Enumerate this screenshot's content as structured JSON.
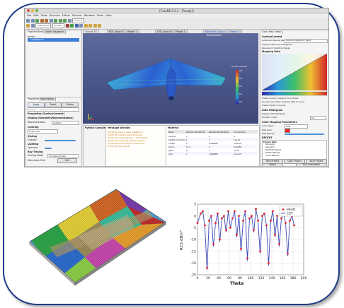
{
  "app": {
    "window_title": "[ColoNE 5.9.1 - [Ready]]",
    "menus": [
      "File",
      "Edit",
      "View",
      "Sources",
      "Filters",
      "Macros",
      "Window",
      "Tools",
      "Help"
    ],
    "toolbar": {
      "reset_label": "Reset",
      "time_label": "Time: 0",
      "render_mode": "Surface",
      "colour_by": "Solid Color"
    },
    "left": {
      "tabs": [
        "Pipeline Browser",
        "Object Inspector"
      ],
      "tree_root": "builtin:",
      "tree_item": "CasMesh.in",
      "props_tabs": [
        "Properties",
        "Information"
      ],
      "apply": "Apply",
      "reset": "Reset",
      "delete": "Delete",
      "search_placeholder": "Search ... (use Esc to clear text)",
      "sections": {
        "props": "Properties (SurfaceCurrent)",
        "display": "Display (GeometryRepresentation)",
        "representation": "Representation",
        "repr_value": "Surface",
        "coloring": "Coloring",
        "color_field": "Solid Color",
        "styling": "Styling",
        "opacity": "Opacity",
        "lighting": "Lighting",
        "specular": "Specular",
        "ray_tracing": "Ray Tracing",
        "scaling_mode": "Scaling Mode",
        "scaling_value": "All Approximate",
        "data_axes": "Data Axes Grid",
        "edit": "Edit"
      }
    },
    "center": {
      "tabs": [
        "Layout #1",
        "RCS Layout 1 - Viewer 1",
        "CFD Layout 1 - Viewer 1",
        "NearField Layout 1 - Viewer 1"
      ],
      "render_view": "RenderView1",
      "colorbar_title": "Surface Current",
      "colorbar_ticks": [
        "0.8",
        "0.6",
        "0.4",
        "0.2",
        "0.0"
      ],
      "output_title": "Python Console",
      "message_title": "Message Window",
      "messages": [
        "[00:00:00] loading mesh 'CasMesh.in'",
        "[00:00:01] building solver structures",
        "[00:00:02] computing RCS ... 'OK' finished",
        "[00:00:03] computing surface currents",
        "[00:00:04] writing output 'currents.vtu'",
        "[00:00:05] 'OK' finished"
      ],
      "material_title": "Material",
      "material_headers": [
        "Name",
        "Relative Permittivity",
        "Relative Permeability",
        "Conductivity"
      ],
      "materials": [
        [
          "vacuum",
          "1",
          "1",
          "0"
        ],
        [
          "perfect conductor",
          "1",
          "1",
          "1e+10"
        ],
        [
          "copper",
          "1",
          "0.999991",
          "5.8e+07"
        ],
        [
          "silicon",
          "11.9",
          "1",
          "0.00156"
        ],
        [
          "glass",
          "6",
          "1",
          "1e-12"
        ],
        [
          "gold",
          "1",
          "0.999966",
          "4.1e+07"
        ]
      ]
    },
    "right": {
      "title": "Color Map Editor",
      "array_label": "SurfaceCurrent",
      "mapping_mode_label": "Automatic Rescale Range Mode",
      "mapping_mode_value": "Grow and update on 'Apply'",
      "interpret_label": "Interpret Values As Categories",
      "rescale_label": "Rescale On Visibility Change",
      "mapping_data": "Mapping Data",
      "enable_opacity": "Enable opacity mapping for surfaces",
      "use_log": "Use log scale when mapping data to colors",
      "enable_freeform": "Enable freeform opacity",
      "data_histogram": "Data Histogram",
      "display_hist": "Display Data Histogram",
      "number_of_bins": "Number of bins",
      "bins_value": "10",
      "color_mapping": "Color Mapping Parameters",
      "color_space": "Color Space",
      "color_space_value": "RGB",
      "nan_color": "NaN Color",
      "nan_opacity": "NaN Opacity",
      "history": "RECENT",
      "project_header": "Project Path",
      "recent_items": [
        "Simulation",
        "Geometry",
        "NearField Results",
        "FarField Results",
        "CurrentResults"
      ],
      "new_project": "New Project",
      "open_project": "Open Project",
      "save_project": "Save Project",
      "about": "About",
      "run_calc": "Run Calculation"
    }
  },
  "colors": {
    "accent": "#1f3c88",
    "pec_marker": "#e8202a",
    "cst_line": "#3a46b8",
    "viewport_top": "#5f6a9c"
  },
  "chart_data": {
    "type": "line",
    "xlabel": "Theta",
    "ylabel": "RCS dBm²",
    "xlim": [
      0,
      200
    ],
    "ylim": [
      -25,
      5
    ],
    "xticks": [
      0,
      20,
      40,
      60,
      80,
      100,
      120,
      140,
      160,
      180,
      200
    ],
    "yticks": [
      5,
      0,
      -5,
      -10,
      -15,
      -20,
      -25
    ],
    "grid": true,
    "legend_position": "top-right",
    "series": [
      {
        "name": "PEHO",
        "marker": "circle",
        "color": "#e8202a",
        "x": [
          0,
          6,
          10,
          14,
          18,
          22,
          26,
          30,
          34,
          38,
          42,
          46,
          50,
          54,
          58,
          62,
          66,
          70,
          74,
          78,
          82,
          86,
          90,
          94,
          98,
          102,
          106,
          110,
          114,
          118,
          122,
          126,
          130,
          134,
          138,
          142,
          146,
          150,
          154,
          158,
          162,
          166,
          170,
          174,
          178,
          182
        ],
        "values": [
          -3,
          1,
          2,
          -4,
          -22,
          -2,
          0,
          -12,
          -3,
          1,
          -10,
          -1,
          0,
          -6,
          2,
          -5,
          -1,
          2,
          -8,
          0,
          -14,
          -2,
          2,
          -18,
          -1,
          0,
          -6,
          3,
          -2,
          -15,
          0,
          1,
          -4,
          -20,
          -2,
          2,
          -8,
          0,
          -12,
          -1,
          1,
          -3,
          -16,
          -2,
          0,
          -4
        ]
      },
      {
        "name": "CST",
        "marker": "line",
        "color": "#3a46b8",
        "x": [
          0,
          6,
          10,
          14,
          18,
          22,
          26,
          30,
          34,
          38,
          42,
          46,
          50,
          54,
          58,
          62,
          66,
          70,
          74,
          78,
          82,
          86,
          90,
          94,
          98,
          102,
          106,
          110,
          114,
          118,
          122,
          126,
          130,
          134,
          138,
          142,
          146,
          150,
          154,
          158,
          162,
          166,
          170,
          174,
          178,
          182
        ],
        "values": [
          -3,
          1,
          2,
          -5,
          -23,
          -2,
          0,
          -13,
          -3,
          1,
          -11,
          -1,
          0,
          -7,
          2,
          -5,
          -1,
          2,
          -9,
          0,
          -15,
          -2,
          2,
          -19,
          -1,
          0,
          -7,
          3,
          -2,
          -16,
          0,
          1,
          -4,
          -21,
          -2,
          2,
          -9,
          0,
          -13,
          -1,
          1,
          -3,
          -17,
          -2,
          0,
          -4
        ]
      }
    ]
  }
}
